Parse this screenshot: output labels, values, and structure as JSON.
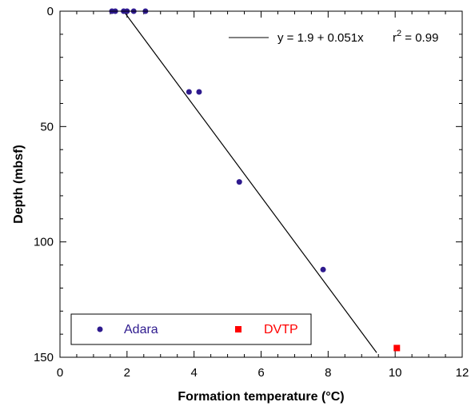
{
  "chart_data": {
    "type": "scatter",
    "xlabel": "Formation temperature (°C)",
    "ylabel": "Depth (mbsf)",
    "xlim": [
      0,
      12
    ],
    "ylim": [
      150,
      0
    ],
    "y_axis_inverted": true,
    "x_ticks": [
      "0",
      "2",
      "4",
      "6",
      "8",
      "10",
      "12"
    ],
    "y_ticks": [
      "0",
      "50",
      "100",
      "150"
    ],
    "grid": false,
    "legend_position": "bottom-left",
    "series": [
      {
        "name": "Adara",
        "marker": "circle",
        "color": "#2e1a8e",
        "points": [
          {
            "x": 1.55,
            "y": 0
          },
          {
            "x": 1.65,
            "y": 0
          },
          {
            "x": 1.9,
            "y": 0
          },
          {
            "x": 2.0,
            "y": 0
          },
          {
            "x": 2.2,
            "y": 0
          },
          {
            "x": 2.55,
            "y": 0
          },
          {
            "x": 3.85,
            "y": 35
          },
          {
            "x": 4.15,
            "y": 35
          },
          {
            "x": 5.35,
            "y": 74
          },
          {
            "x": 7.85,
            "y": 112
          }
        ]
      },
      {
        "name": "DVTP",
        "marker": "square",
        "color": "#ff0000",
        "points": [
          {
            "x": 10.05,
            "y": 146
          }
        ]
      }
    ],
    "fit_line": {
      "label": "y = 1.9 + 0.051x",
      "r2_prefix": "r",
      "r2_exponent": "2",
      "r2_suffix": " = 0.99",
      "intercept": 1.9,
      "slope": 0.051,
      "depth_range": [
        0,
        148
      ],
      "color": "#000000"
    }
  }
}
